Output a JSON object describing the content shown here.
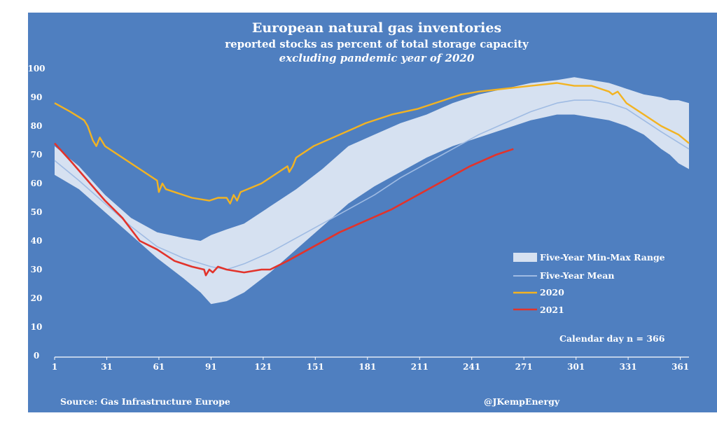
{
  "chart_data": {
    "type": "area",
    "title": "European natural gas inventories",
    "subtitle": "reported stocks as percent of total storage capacity",
    "subtitle2": "excluding pandemic year of 2020",
    "xlabel": "",
    "ylabel": "",
    "x_ticks": [
      1,
      31,
      61,
      91,
      121,
      151,
      181,
      211,
      241,
      271,
      301,
      331,
      361
    ],
    "y_ticks": [
      0,
      10,
      20,
      30,
      40,
      50,
      60,
      70,
      80,
      90,
      100
    ],
    "xlim": [
      1,
      366
    ],
    "ylim": [
      0,
      100
    ],
    "grid": false,
    "legend_position": "right",
    "annotation": "Calendar day n = 366",
    "range": {
      "name": "Five-Year Min-Max Range",
      "color": "#d6e1f1",
      "x": [
        1,
        15,
        30,
        45,
        60,
        75,
        85,
        91,
        100,
        110,
        125,
        140,
        155,
        170,
        185,
        200,
        215,
        230,
        245,
        260,
        275,
        290,
        300,
        310,
        320,
        330,
        340,
        350,
        355,
        360,
        366
      ],
      "min": [
        63,
        58,
        50,
        42,
        34,
        27,
        22,
        18,
        19,
        22,
        29,
        37,
        45,
        53,
        59,
        64,
        69,
        73,
        76,
        79,
        82,
        84,
        84,
        83,
        82,
        80,
        77,
        72,
        70,
        67,
        65
      ],
      "max": [
        73,
        66,
        56,
        48,
        43,
        41,
        40,
        42,
        44,
        46,
        52,
        58,
        65,
        73,
        77,
        81,
        84,
        88,
        91,
        93,
        95,
        96,
        97,
        96,
        95,
        93,
        91,
        90,
        89,
        89,
        88
      ]
    },
    "series": [
      {
        "name": "Five-Year Mean",
        "color": "#9fbbe3",
        "x": [
          1,
          15,
          30,
          45,
          60,
          75,
          91,
          100,
          110,
          125,
          140,
          155,
          170,
          185,
          200,
          215,
          230,
          245,
          260,
          275,
          290,
          300,
          310,
          320,
          330,
          340,
          350,
          366
        ],
        "values": [
          68,
          61,
          53,
          45,
          38,
          34,
          31,
          30,
          32,
          36,
          41,
          46,
          51,
          56,
          62,
          67,
          72,
          77,
          81,
          85,
          88,
          89,
          89,
          88,
          86,
          82,
          78,
          72
        ]
      },
      {
        "name": "2020",
        "color": "#f2b322",
        "x": [
          1,
          10,
          18,
          20,
          23,
          25,
          27,
          30,
          40,
          50,
          60,
          61,
          63,
          65,
          70,
          80,
          90,
          95,
          100,
          102,
          104,
          106,
          108,
          120,
          135,
          136,
          138,
          140,
          150,
          165,
          180,
          195,
          210,
          225,
          235,
          245,
          260,
          275,
          290,
          300,
          310,
          320,
          322,
          325,
          330,
          340,
          350,
          360,
          366
        ],
        "values": [
          88,
          85,
          82,
          80,
          75,
          73,
          76,
          73,
          69,
          65,
          61,
          57,
          60,
          58,
          57,
          55,
          54,
          55,
          55,
          53,
          56,
          54,
          57,
          60,
          66,
          64,
          66,
          69,
          73,
          77,
          81,
          84,
          86,
          89,
          91,
          92,
          93,
          94,
          95,
          94,
          94,
          92,
          91,
          92,
          88,
          84,
          80,
          77,
          74
        ]
      },
      {
        "name": "2021",
        "color": "#e2332b",
        "x": [
          1,
          10,
          20,
          30,
          40,
          50,
          60,
          70,
          80,
          87,
          88,
          90,
          92,
          95,
          100,
          110,
          120,
          125,
          135,
          150,
          165,
          180,
          195,
          210,
          225,
          240,
          255,
          265
        ],
        "values": [
          74,
          68,
          61,
          54,
          48,
          40,
          37,
          33,
          31,
          30,
          28,
          30,
          29,
          31,
          30,
          29,
          30,
          30,
          33,
          38,
          43,
          47,
          51,
          56,
          61,
          66,
          70,
          72
        ]
      }
    ]
  },
  "footer": {
    "source": "Source: Gas Infrastructure Europe",
    "credit": "@JKempEnergy"
  }
}
